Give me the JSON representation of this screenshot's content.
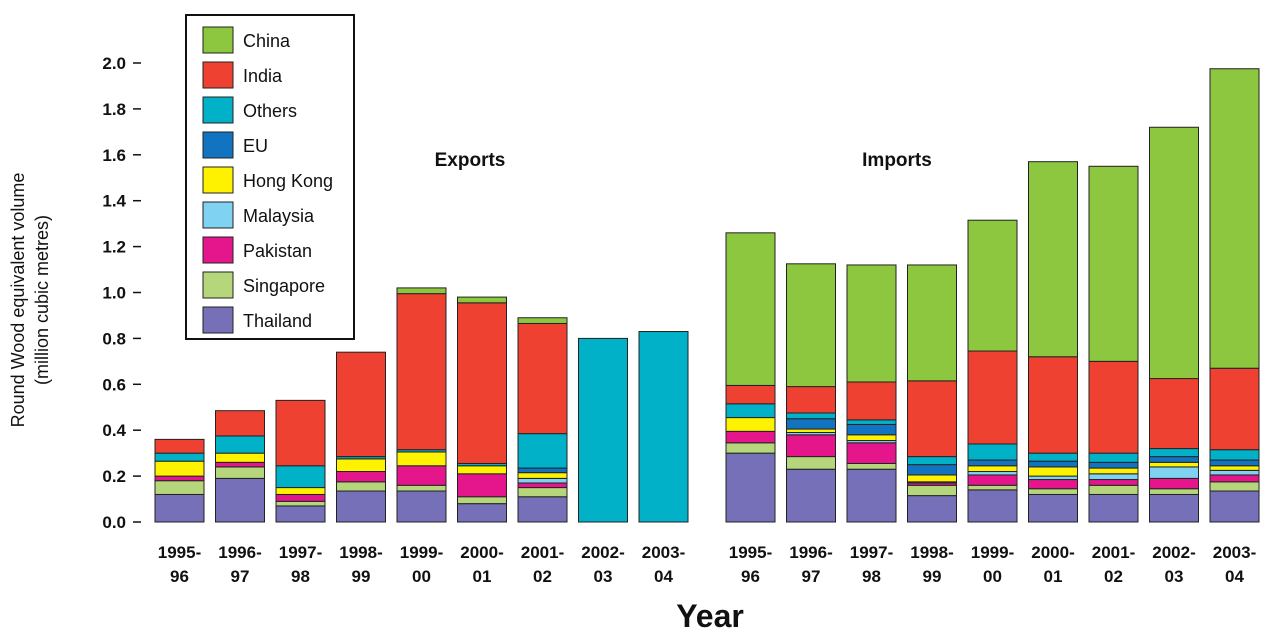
{
  "chart_data": {
    "type": "bar",
    "stacked": true,
    "title": "",
    "xlabel": "Year",
    "ylabel_line1": "Round Wood equivalent volume",
    "ylabel_line2": "(million cubic metres)",
    "ylim": [
      0,
      2.0
    ],
    "yticks": [
      "0.0",
      "0.2",
      "0.4",
      "0.6",
      "0.8",
      "1.0",
      "1.2",
      "1.4",
      "1.6",
      "1.8",
      "2.0"
    ],
    "grid": false,
    "legend_position": "top-left",
    "legend": [
      "China",
      "India",
      "Others",
      "EU",
      "Hong Kong",
      "Malaysia",
      "Pakistan",
      "Singapore",
      "Thailand"
    ],
    "colors": {
      "Thailand": "#7570b8",
      "Singapore": "#b5d67b",
      "Pakistan": "#e5168c",
      "Malaysia": "#7fd2f2",
      "Hong Kong": "#fff200",
      "EU": "#1273c0",
      "Others": "#00b1c8",
      "India": "#ef4132",
      "China": "#8dc63f"
    },
    "stack_order": [
      "Thailand",
      "Singapore",
      "Pakistan",
      "Malaysia",
      "Hong Kong",
      "EU",
      "Others",
      "India",
      "China"
    ],
    "panels": [
      {
        "name": "Exports",
        "categories": [
          [
            "1995-",
            "96"
          ],
          [
            "1996-",
            "97"
          ],
          [
            "1997-",
            "98"
          ],
          [
            "1998-",
            "99"
          ],
          [
            "1999-",
            "00"
          ],
          [
            "2000-",
            "01"
          ],
          [
            "2001-",
            "02"
          ],
          [
            "2002-",
            "03"
          ],
          [
            "2003-",
            "04"
          ]
        ],
        "series": [
          {
            "name": "Thailand",
            "values": [
              0.12,
              0.19,
              0.07,
              0.135,
              0.135,
              0.08,
              0.11,
              0,
              0
            ]
          },
          {
            "name": "Singapore",
            "values": [
              0.06,
              0.05,
              0.02,
              0.04,
              0.025,
              0.03,
              0.04,
              0,
              0
            ]
          },
          {
            "name": "Pakistan",
            "values": [
              0.02,
              0.02,
              0.03,
              0.045,
              0.085,
              0.1,
              0.02,
              0,
              0
            ]
          },
          {
            "name": "Malaysia",
            "values": [
              0,
              0,
              0,
              0,
              0,
              0,
              0.02,
              0,
              0
            ]
          },
          {
            "name": "Hong Kong",
            "values": [
              0.065,
              0.04,
              0.03,
              0.055,
              0.06,
              0.035,
              0.025,
              0,
              0
            ]
          },
          {
            "name": "EU",
            "values": [
              0,
              0,
              0,
              0,
              0,
              0,
              0.02,
              0,
              0
            ]
          },
          {
            "name": "Others",
            "values": [
              0.035,
              0.075,
              0.095,
              0.01,
              0.01,
              0.01,
              0.15,
              0.8,
              0.83
            ]
          },
          {
            "name": "India",
            "values": [
              0.06,
              0.11,
              0.285,
              0.455,
              0.68,
              0.7,
              0.48,
              0,
              0
            ]
          },
          {
            "name": "China",
            "values": [
              0,
              0,
              0,
              0,
              0.025,
              0.025,
              0.025,
              0,
              0
            ]
          }
        ]
      },
      {
        "name": "Imports",
        "categories": [
          [
            "1995-",
            "96"
          ],
          [
            "1996-",
            "97"
          ],
          [
            "1997-",
            "98"
          ],
          [
            "1998-",
            "99"
          ],
          [
            "1999-",
            "00"
          ],
          [
            "2000-",
            "01"
          ],
          [
            "2001-",
            "02"
          ],
          [
            "2002-",
            "03"
          ],
          [
            "2003-",
            "04"
          ]
        ],
        "series": [
          {
            "name": "Thailand",
            "values": [
              0.3,
              0.23,
              0.23,
              0.115,
              0.14,
              0.12,
              0.12,
              0.12,
              0.135
            ]
          },
          {
            "name": "Singapore",
            "values": [
              0.045,
              0.055,
              0.025,
              0.045,
              0.02,
              0.025,
              0.04,
              0.025,
              0.04
            ]
          },
          {
            "name": "Pakistan",
            "values": [
              0.05,
              0.095,
              0.09,
              0.01,
              0.045,
              0.04,
              0.025,
              0.045,
              0.03
            ]
          },
          {
            "name": "Malaysia",
            "values": [
              0,
              0.01,
              0.01,
              0.005,
              0.015,
              0.015,
              0.025,
              0.05,
              0.02
            ]
          },
          {
            "name": "Hong Kong",
            "values": [
              0.06,
              0.015,
              0.025,
              0.03,
              0.025,
              0.04,
              0.025,
              0.02,
              0.02
            ]
          },
          {
            "name": "EU",
            "values": [
              0,
              0.045,
              0.045,
              0.045,
              0.025,
              0.025,
              0.025,
              0.025,
              0.025
            ]
          },
          {
            "name": "Others",
            "values": [
              0.06,
              0.025,
              0.02,
              0.035,
              0.07,
              0.035,
              0.04,
              0.035,
              0.045
            ]
          },
          {
            "name": "India",
            "values": [
              0.08,
              0.115,
              0.165,
              0.33,
              0.405,
              0.42,
              0.4,
              0.305,
              0.355
            ]
          },
          {
            "name": "China",
            "values": [
              0.665,
              0.535,
              0.51,
              0.505,
              0.57,
              0.85,
              0.85,
              1.095,
              1.305
            ]
          }
        ]
      }
    ]
  }
}
